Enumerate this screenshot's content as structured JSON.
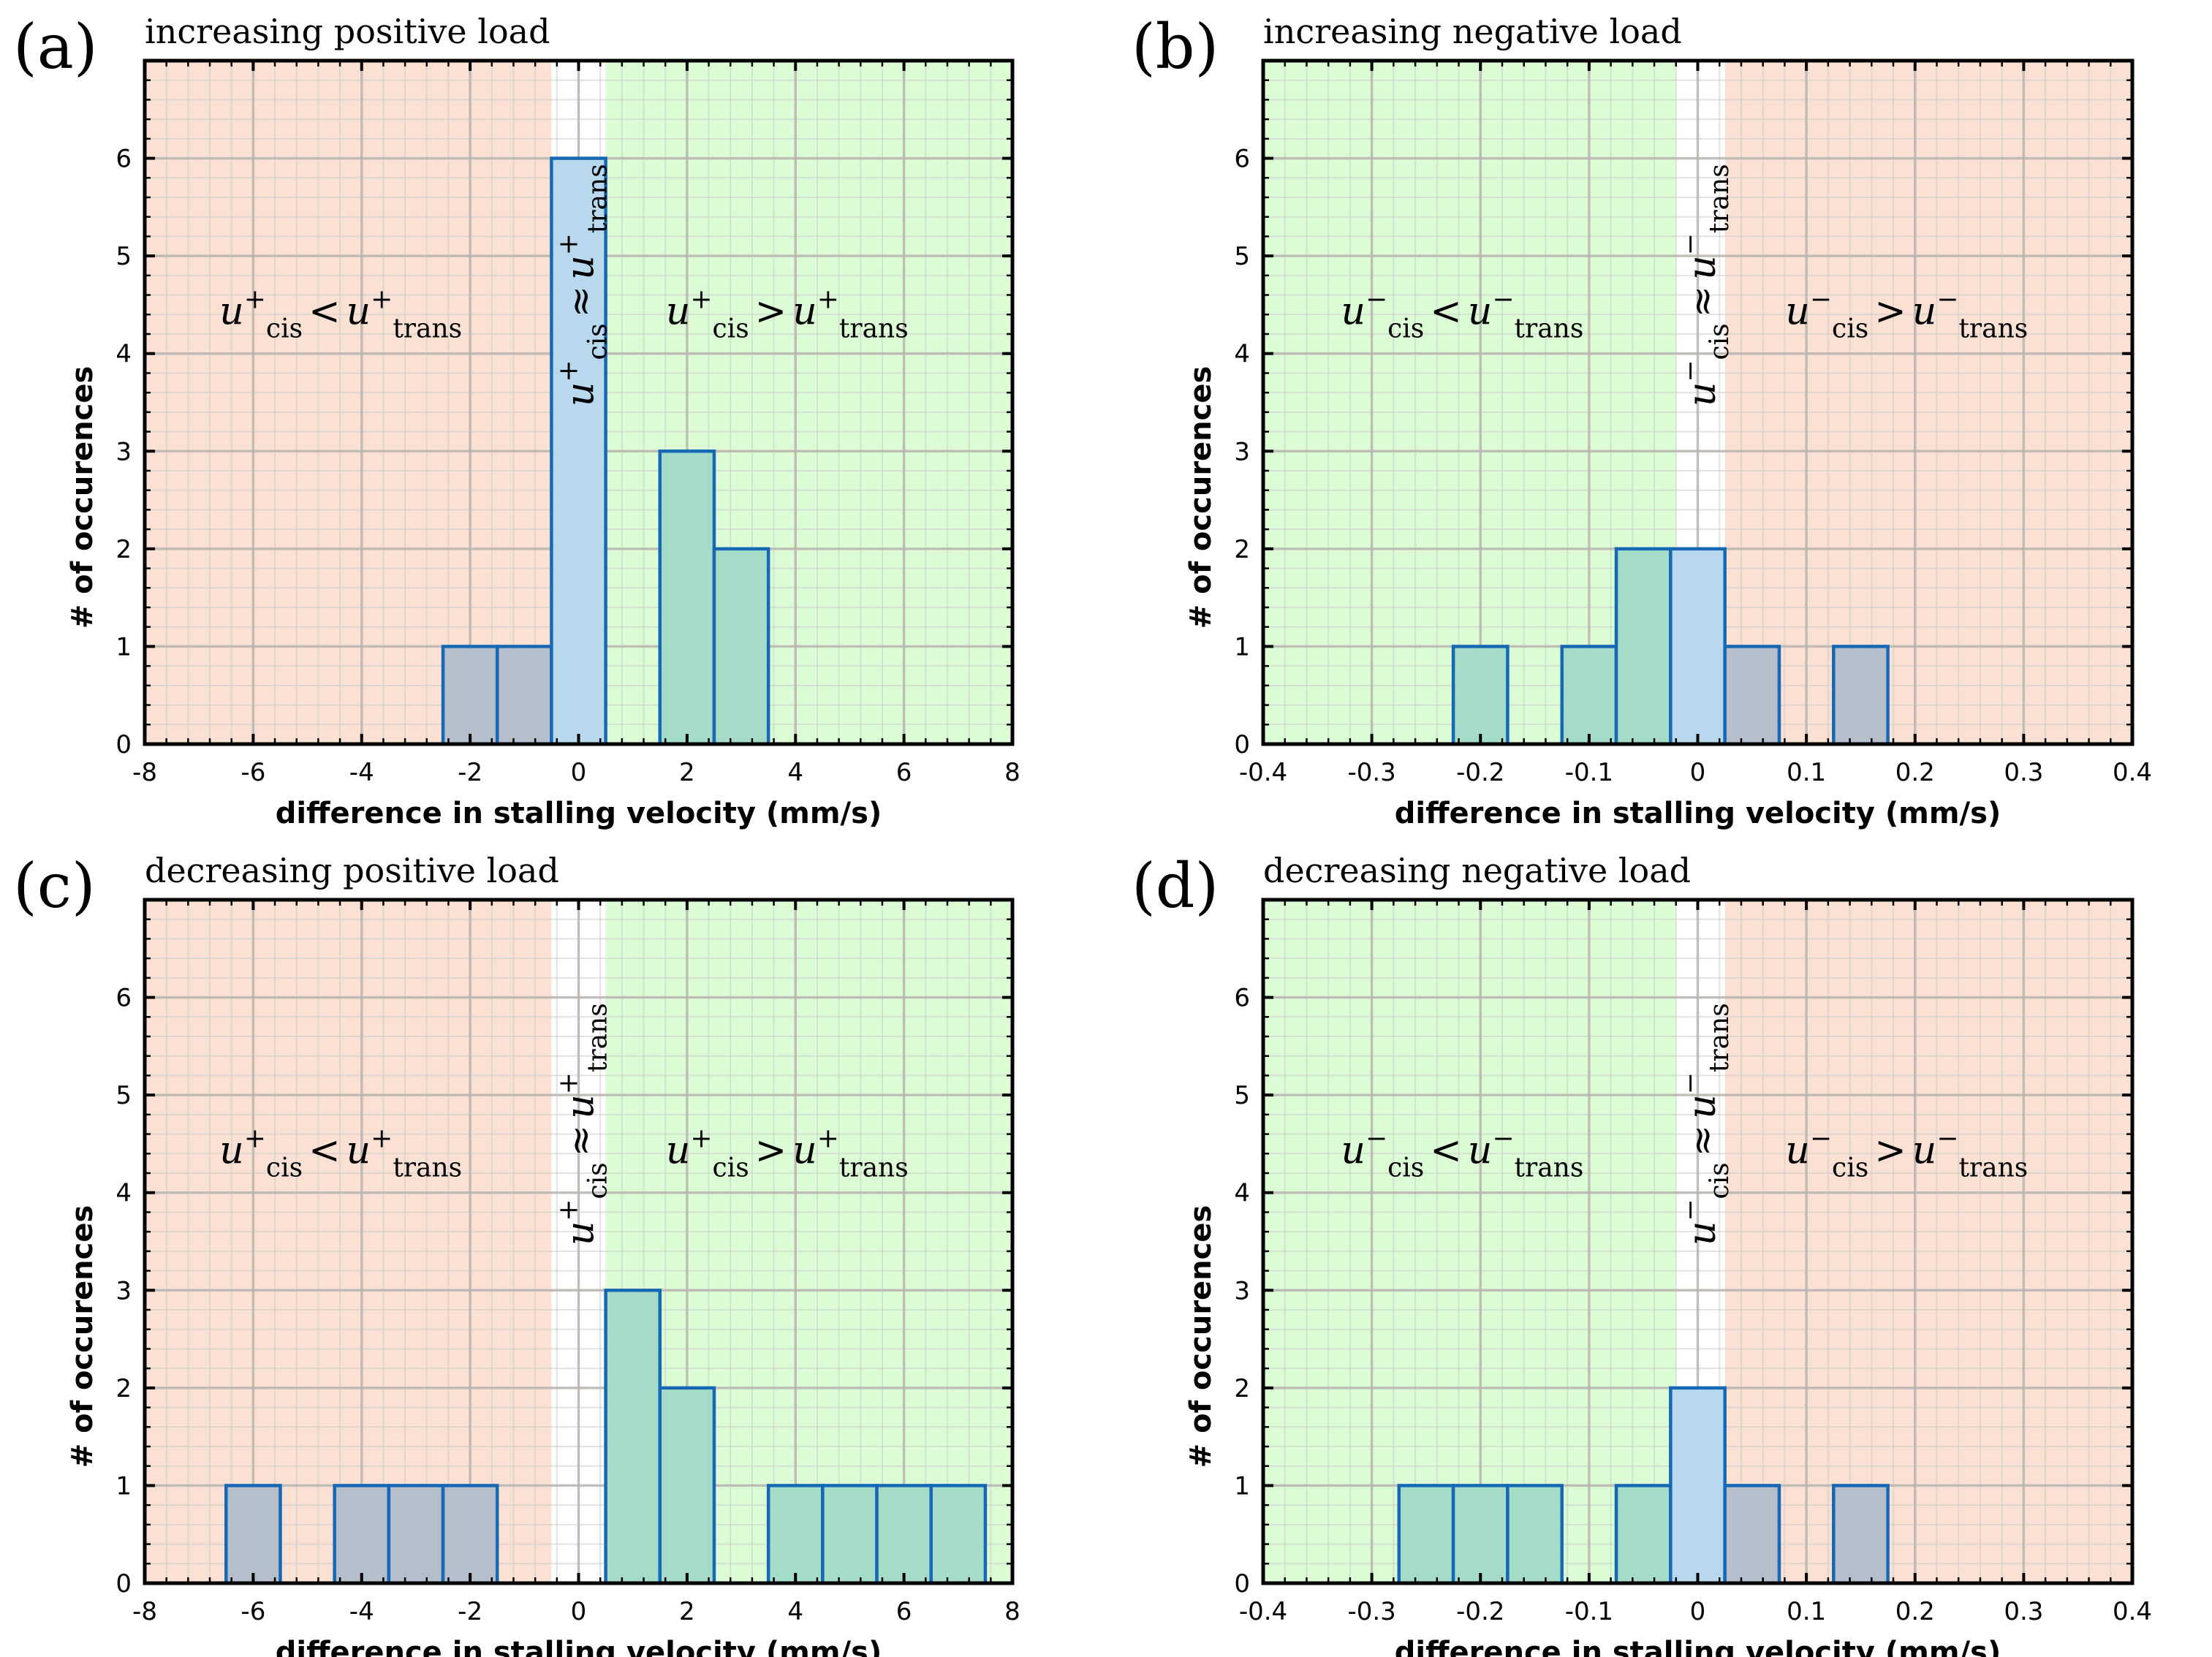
{
  "colors": {
    "region_red": "#fbe1d4",
    "region_green": "#dcfcd6",
    "region_neutral": "#ffffff",
    "bar_in_red": "#b4bfcb",
    "bar_in_green": "#a4dcc8",
    "bar_neutral": "#b8d8ee",
    "bar_edge": "#1668b4"
  },
  "chart_data": [
    {
      "type": "bar",
      "panel": "(a)",
      "title": "increasing positive load",
      "xlabel": "difference in stalling velocity (mm/s)",
      "ylabel": "# of occurences",
      "xlim": [
        -8,
        8
      ],
      "ylim": [
        0,
        7
      ],
      "xticks": [
        "-8",
        "-6",
        "-4",
        "-2",
        "0",
        "2",
        "4",
        "6",
        "8"
      ],
      "yticks": [
        "0",
        "1",
        "2",
        "3",
        "4",
        "5",
        "6"
      ],
      "bin_width": 1,
      "bin_centers": [
        -2,
        -1,
        0,
        2,
        3
      ],
      "counts": [
        1,
        1,
        6,
        3,
        2
      ],
      "regions": {
        "neutral_band": [
          -0.5,
          0.5
        ],
        "left": "red",
        "right": "green"
      },
      "region_labels": {
        "left": {
          "u": "u",
          "sub": "cis",
          "sup": "+",
          "op": "<",
          "u2": "u",
          "sub2": "trans",
          "sup2": "+"
        },
        "middle": {
          "u": "u",
          "sub": "cis",
          "sup": "+",
          "op": "≈",
          "u2": "u",
          "sub2": "trans",
          "sup2": "+"
        },
        "right": {
          "u": "u",
          "sub": "cis",
          "sup": "+",
          "op": ">",
          "u2": "u",
          "sub2": "trans",
          "sup2": "+"
        }
      },
      "grid": true
    },
    {
      "type": "bar",
      "panel": "(b)",
      "title": "increasing negative load",
      "xlabel": "difference in stalling velocity (mm/s)",
      "ylabel": "# of occurences",
      "xlim": [
        -0.4,
        0.4
      ],
      "ylim": [
        0,
        7
      ],
      "xticks": [
        "-0.4",
        "-0.3",
        "-0.2",
        "-0.1",
        "0",
        "0.1",
        "0.2",
        "0.3",
        "0.4"
      ],
      "yticks": [
        "0",
        "1",
        "2",
        "3",
        "4",
        "5",
        "6"
      ],
      "bin_width": 0.05,
      "bin_centers": [
        -0.2,
        -0.1,
        -0.05,
        0,
        0.05,
        0.15
      ],
      "counts": [
        1,
        1,
        2,
        2,
        1,
        1
      ],
      "regions": {
        "neutral_band": [
          -0.02,
          0.025
        ],
        "left": "green",
        "right": "red"
      },
      "region_labels": {
        "left": {
          "u": "u",
          "sub": "cis",
          "sup": "−",
          "op": "<",
          "u2": "u",
          "sub2": "trans",
          "sup2": "−"
        },
        "middle": {
          "u": "u",
          "sub": "cis",
          "sup": "−",
          "op": "≈",
          "u2": "u",
          "sub2": "trans",
          "sup2": "−"
        },
        "right": {
          "u": "u",
          "sub": "cis",
          "sup": "−",
          "op": ">",
          "u2": "u",
          "sub2": "trans",
          "sup2": "−"
        }
      },
      "grid": true
    },
    {
      "type": "bar",
      "panel": "(c)",
      "title": "decreasing positive load",
      "xlabel": "difference in stalling velocity (mm/s)",
      "ylabel": "# of occurences",
      "xlim": [
        -8,
        8
      ],
      "ylim": [
        0,
        7
      ],
      "xticks": [
        "-8",
        "-6",
        "-4",
        "-2",
        "0",
        "2",
        "4",
        "6",
        "8"
      ],
      "yticks": [
        "0",
        "1",
        "2",
        "3",
        "4",
        "5",
        "6"
      ],
      "bin_width": 1,
      "bin_centers": [
        -6,
        -4,
        -3,
        -2,
        1,
        2,
        4,
        5,
        6,
        7
      ],
      "counts": [
        1,
        1,
        1,
        1,
        3,
        2,
        1,
        1,
        1,
        1
      ],
      "regions": {
        "neutral_band": [
          -0.5,
          0.5
        ],
        "left": "red",
        "right": "green"
      },
      "region_labels": {
        "left": {
          "u": "u",
          "sub": "cis",
          "sup": "+",
          "op": "<",
          "u2": "u",
          "sub2": "trans",
          "sup2": "+"
        },
        "middle": {
          "u": "u",
          "sub": "cis",
          "sup": "+",
          "op": "≈",
          "u2": "u",
          "sub2": "trans",
          "sup2": "+"
        },
        "right": {
          "u": "u",
          "sub": "cis",
          "sup": "+",
          "op": ">",
          "u2": "u",
          "sub2": "trans",
          "sup2": "+"
        }
      },
      "grid": true
    },
    {
      "type": "bar",
      "panel": "(d)",
      "title": "decreasing negative load",
      "xlabel": "difference in stalling velocity (mm/s)",
      "ylabel": "# of occurences",
      "xlim": [
        -0.4,
        0.4
      ],
      "ylim": [
        0,
        7
      ],
      "xticks": [
        "-0.4",
        "-0.3",
        "-0.2",
        "-0.1",
        "0",
        "0.1",
        "0.2",
        "0.3",
        "0.4"
      ],
      "yticks": [
        "0",
        "1",
        "2",
        "3",
        "4",
        "5",
        "6"
      ],
      "bin_width": 0.05,
      "bin_centers": [
        -0.25,
        -0.2,
        -0.15,
        -0.05,
        0,
        0.05,
        0.15
      ],
      "counts": [
        1,
        1,
        1,
        1,
        2,
        1,
        1
      ],
      "regions": {
        "neutral_band": [
          -0.02,
          0.025
        ],
        "left": "green",
        "right": "red"
      },
      "region_labels": {
        "left": {
          "u": "u",
          "sub": "cis",
          "sup": "−",
          "op": "<",
          "u2": "u",
          "sub2": "trans",
          "sup2": "−"
        },
        "middle": {
          "u": "u",
          "sub": "cis",
          "sup": "−",
          "op": "≈",
          "u2": "u",
          "sub2": "trans",
          "sup2": "−"
        },
        "right": {
          "u": "u",
          "sub": "cis",
          "sup": "−",
          "op": ">",
          "u2": "u",
          "sub2": "trans",
          "sup2": "−"
        }
      },
      "grid": true
    }
  ]
}
